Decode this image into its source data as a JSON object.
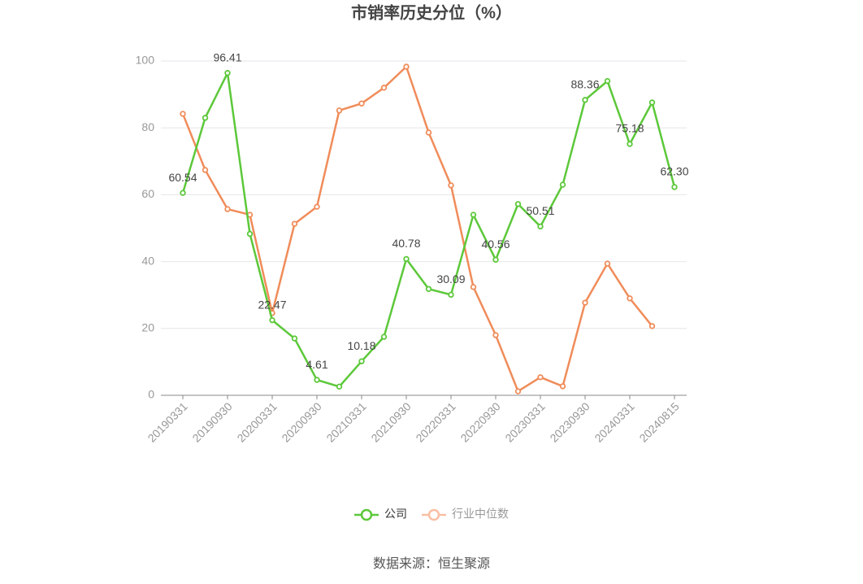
{
  "chart_data": {
    "type": "line",
    "title": "市销率历史分位（%）",
    "categories": [
      "20190331",
      null,
      "20190930",
      null,
      "20200331",
      null,
      "20200930",
      null,
      "20210331",
      null,
      "20210930",
      null,
      "20220331",
      null,
      "20220930",
      null,
      "20230331",
      null,
      "20230930",
      null,
      "20240331",
      null,
      "20240815"
    ],
    "series": [
      {
        "name": "公司",
        "color": "#5cc83a",
        "values": [
          60.54,
          83,
          96.41,
          48.3,
          22.47,
          17,
          4.61,
          2.6,
          10.18,
          17.5,
          40.78,
          31.8,
          30.09,
          54,
          40.56,
          57.2,
          50.51,
          63,
          88.36,
          94,
          75.18,
          87.6,
          62.3
        ],
        "value_labels": [
          "60.54",
          null,
          "96.41",
          null,
          "22.47",
          null,
          "4.61",
          null,
          "10.18",
          null,
          "40.78",
          null,
          "30.09",
          null,
          "40.56",
          null,
          "50.51",
          null,
          "88.36",
          null,
          "75.18",
          null,
          "62.30"
        ]
      },
      {
        "name": "行业中位数",
        "color": "#f08c5a",
        "values": [
          84.2,
          67.4,
          55.7,
          54,
          24.6,
          51.3,
          56.4,
          85.2,
          87.3,
          92,
          98.3,
          78.6,
          62.8,
          32.4,
          18,
          1.2,
          5.4,
          2.7,
          27.7,
          39.4,
          29,
          20.7,
          null
        ]
      }
    ],
    "ylim": [
      0,
      100
    ],
    "yticks": [
      0,
      20,
      40,
      60,
      80,
      100
    ],
    "grid": true,
    "legend": "bottom",
    "source": "数据来源：恒生聚源"
  }
}
